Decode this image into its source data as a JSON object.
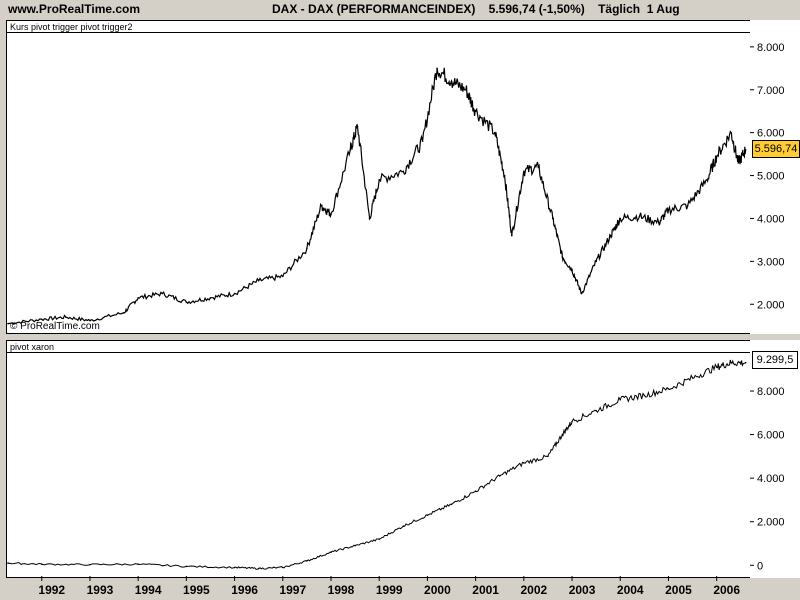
{
  "header": {
    "site": "www.ProRealTime.com",
    "title": "DAX - DAX (PERFORMANCEINDEX)    5.596,74 (-1,50%)    Täglich  1 Aug"
  },
  "price_panel": {
    "label": "Kurs    pivot trigger pivot trigger2",
    "watermark": "© ProRealTime.com",
    "last_value": "5.596,74"
  },
  "indicator_panel": {
    "label": "pivot xaron",
    "last_value": "9.299,5"
  },
  "colors": {
    "up": "#008000",
    "down": "#ff0000",
    "line": "#000000",
    "last_price_bg": "#ffcc33"
  },
  "chart_data": [
    {
      "type": "line",
      "title": "DAX - DAX (PERFORMANCEINDEX)",
      "x": [
        "1991.3",
        "1992",
        "1992.5",
        "1993",
        "1993.7",
        "1994",
        "1994.5",
        "1995",
        "1995.5",
        "1996",
        "1996.5",
        "1997",
        "1997.5",
        "1997.8",
        "1998",
        "1998.4",
        "1998.55",
        "1998.8",
        "1999",
        "1999.5",
        "1999.9",
        "2000.2",
        "2000.5",
        "2000.8",
        "2001",
        "2001.4",
        "2001.6",
        "2001.75",
        "2002",
        "2002.3",
        "2002.6",
        "2002.8",
        "2003",
        "2003.2",
        "2003.5",
        "2003.8",
        "2004",
        "2004.4",
        "2004.8",
        "2005",
        "2005.4",
        "2005.8",
        "2006",
        "2006.3",
        "2006.45",
        "2006.6"
      ],
      "values": [
        1550,
        1650,
        1700,
        1620,
        1800,
        2150,
        2250,
        2050,
        2150,
        2250,
        2550,
        2650,
        3300,
        4300,
        4100,
        5600,
        6150,
        4000,
        4900,
        5100,
        5800,
        7500,
        7200,
        7000,
        6500,
        6000,
        5000,
        3600,
        5100,
        5200,
        4000,
        3100,
        2800,
        2250,
        3000,
        3600,
        4000,
        4050,
        3900,
        4200,
        4300,
        4900,
        5450,
        6000,
        5300,
        5600
      ],
      "ylim": [
        1400,
        8300
      ],
      "yticks": [
        "2.000",
        "3.000",
        "4.000",
        "5.000",
        "6.000",
        "7.000",
        "8.000"
      ],
      "ytick_values": [
        2000,
        3000,
        4000,
        5000,
        6000,
        7000,
        8000
      ],
      "xlabel": "",
      "ylabel": "",
      "grid": false
    },
    {
      "type": "line",
      "title": "pivot xaron",
      "x": [
        "1991.3",
        "1992",
        "1993",
        "1994",
        "1995",
        "1996",
        "1996.5",
        "1997",
        "1997.5",
        "1998",
        "1998.5",
        "1999",
        "1999.5",
        "2000",
        "2000.5",
        "2001",
        "2001.5",
        "2002",
        "2002.5",
        "2002.8",
        "2003",
        "2003.5",
        "2004",
        "2004.5",
        "2005",
        "2005.5",
        "2006",
        "2006.3",
        "2006.6"
      ],
      "values": [
        100,
        50,
        30,
        50,
        -50,
        -100,
        -150,
        -100,
        200,
        600,
        900,
        1200,
        1800,
        2300,
        2800,
        3400,
        4100,
        4700,
        5000,
        6000,
        6600,
        7100,
        7600,
        7800,
        8100,
        8600,
        9100,
        9300,
        9299.5
      ],
      "ylim": [
        -400,
        9700
      ],
      "yticks": [
        "0",
        "2.000",
        "4.000",
        "6.000",
        "8.000"
      ],
      "ytick_values": [
        0,
        2000,
        4000,
        6000,
        8000
      ],
      "xlabel": "",
      "ylabel": "",
      "grid": false
    }
  ],
  "xaxis": {
    "labels": [
      "1992",
      "1993",
      "1994",
      "1995",
      "1996",
      "1997",
      "1998",
      "1999",
      "2000",
      "2001",
      "2002",
      "2003",
      "2004",
      "2005",
      "2006"
    ],
    "values": [
      1992,
      1993,
      1994,
      1995,
      1996,
      1997,
      1998,
      1999,
      2000,
      2001,
      2002,
      2003,
      2004,
      2005,
      2006
    ]
  }
}
